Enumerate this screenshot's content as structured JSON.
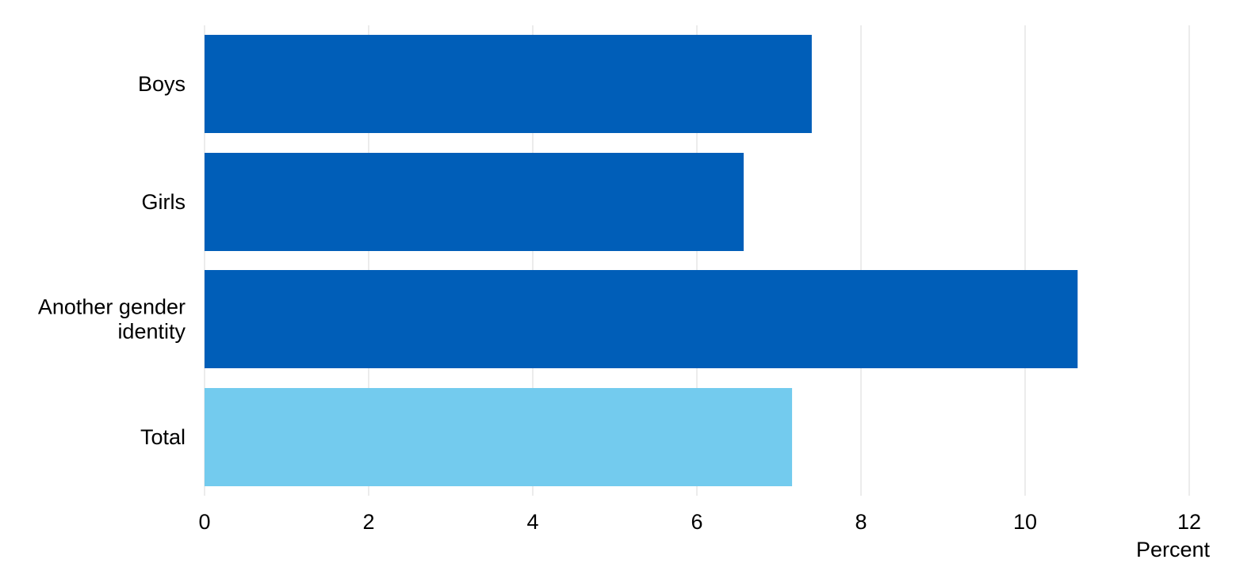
{
  "chart_data": {
    "type": "bar",
    "orientation": "horizontal",
    "categories": [
      [
        "Boys"
      ],
      [
        "Girls"
      ],
      [
        "Another gender",
        "identity"
      ],
      [
        "Total"
      ]
    ],
    "values": [
      7.4,
      6.57,
      10.64,
      7.16
    ],
    "bar_colors": [
      "#005EB8",
      "#005EB8",
      "#005EB8",
      "#73CBEE"
    ],
    "xlabel": "Percent",
    "ylabel": "",
    "title": "",
    "xlim": [
      0,
      12
    ],
    "xticks": [
      0,
      2,
      4,
      6,
      8,
      10,
      12
    ],
    "grid": "vertical",
    "legend": "none"
  },
  "colors": {
    "grid": "#D9D9D9",
    "text": "#000000"
  }
}
